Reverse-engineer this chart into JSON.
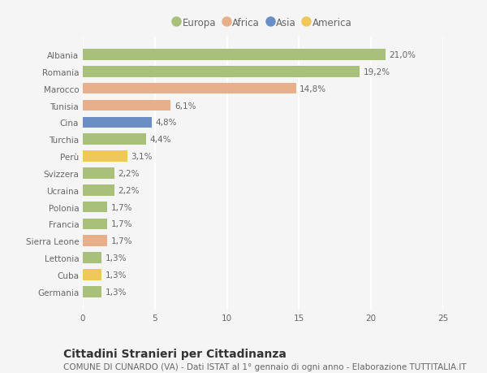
{
  "countries": [
    "Albania",
    "Romania",
    "Marocco",
    "Tunisia",
    "Cina",
    "Turchia",
    "Perù",
    "Svizzera",
    "Ucraina",
    "Polonia",
    "Francia",
    "Sierra Leone",
    "Lettonia",
    "Cuba",
    "Germania"
  ],
  "values": [
    21.0,
    19.2,
    14.8,
    6.1,
    4.8,
    4.4,
    3.1,
    2.2,
    2.2,
    1.7,
    1.7,
    1.7,
    1.3,
    1.3,
    1.3
  ],
  "labels": [
    "21,0%",
    "19,2%",
    "14,8%",
    "6,1%",
    "4,8%",
    "4,4%",
    "3,1%",
    "2,2%",
    "2,2%",
    "1,7%",
    "1,7%",
    "1,7%",
    "1,3%",
    "1,3%",
    "1,3%"
  ],
  "continents": [
    "Europa",
    "Europa",
    "Africa",
    "Africa",
    "Asia",
    "Europa",
    "America",
    "Europa",
    "Europa",
    "Europa",
    "Europa",
    "Africa",
    "Europa",
    "America",
    "Europa"
  ],
  "continent_colors": {
    "Europa": "#a8c07a",
    "Africa": "#e8b08a",
    "Asia": "#6b8fc4",
    "America": "#f0c85a"
  },
  "legend_order": [
    "Europa",
    "Africa",
    "Asia",
    "America"
  ],
  "title": "Cittadini Stranieri per Cittadinanza",
  "subtitle": "COMUNE DI CUNARDO (VA) - Dati ISTAT al 1° gennaio di ogni anno - Elaborazione TUTTITALIA.IT",
  "xlim": [
    0,
    25
  ],
  "xticks": [
    0,
    5,
    10,
    15,
    20,
    25
  ],
  "background_color": "#f5f5f5",
  "grid_color": "#ffffff",
  "bar_height": 0.65,
  "title_fontsize": 10,
  "subtitle_fontsize": 7.5,
  "label_fontsize": 7.5,
  "tick_fontsize": 7.5,
  "legend_fontsize": 8.5
}
